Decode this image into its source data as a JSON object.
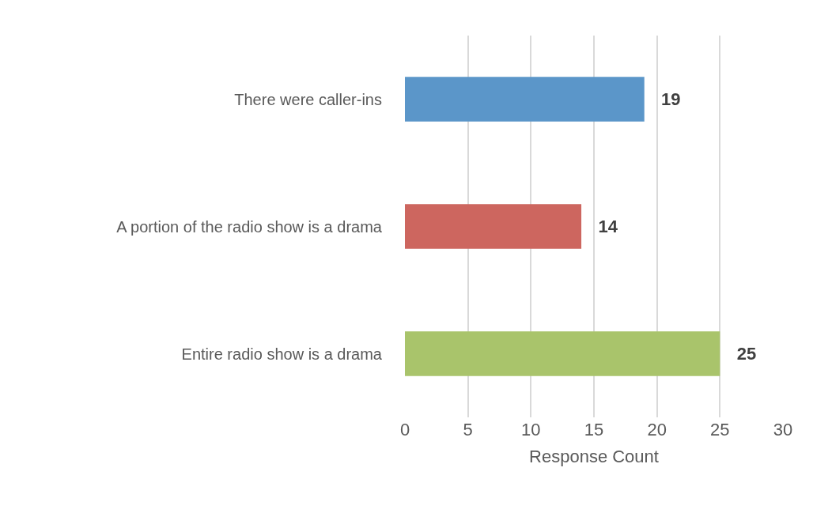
{
  "chart_data": {
    "type": "bar",
    "orientation": "horizontal",
    "categories": [
      "There were caller-ins",
      "A portion of the radio show is a drama",
      "Entire radio show is a drama"
    ],
    "values": [
      19,
      14,
      25
    ],
    "colors": [
      "#5b96c9",
      "#cd665f",
      "#a9c46b"
    ],
    "xlim": [
      0,
      30
    ],
    "xticks": [
      0,
      5,
      10,
      15,
      20,
      25,
      30
    ],
    "xlabel": "Response Count",
    "grid": "x",
    "data_labels": true
  }
}
